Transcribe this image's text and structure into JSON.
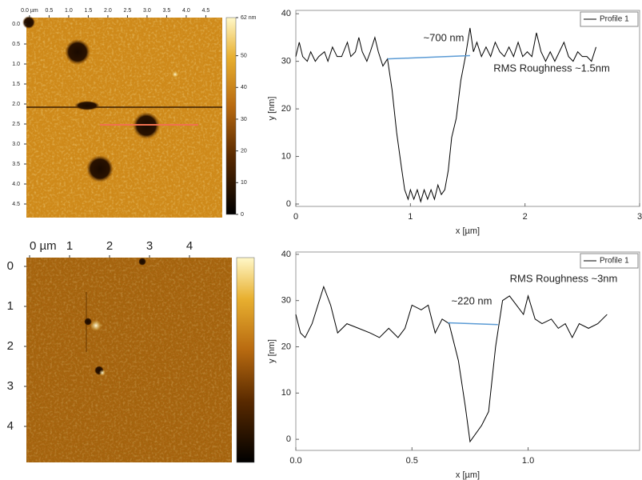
{
  "chart_data": [
    {
      "type": "image",
      "xlim": [
        -0.08,
        4.92
      ],
      "ylim": [
        -0.16,
        4.84
      ],
      "xticks": [
        {
          "value": 0,
          "label": "0.0 µm"
        },
        0.5,
        {
          "value": 1,
          "label": "1.0"
        },
        1.5,
        {
          "value": 2,
          "label": "2.0"
        },
        2.5,
        {
          "value": 3,
          "label": "3.0"
        },
        3.5,
        {
          "value": 4,
          "label": "4.0"
        },
        4.5
      ],
      "yticks": [
        {
          "value": 0,
          "label": "0.0"
        },
        0.5,
        {
          "value": 1,
          "label": "1.0"
        },
        1.5,
        {
          "value": 2,
          "label": "2.0"
        },
        2.5,
        {
          "value": 3,
          "label": "3.0"
        },
        3.5,
        {
          "value": 4,
          "label": "4.0"
        },
        4.5
      ],
      "colorbar": {
        "lim": [
          0,
          62
        ],
        "ticks": [
          0,
          10,
          20,
          30,
          40,
          50,
          {
            "value": 62,
            "label": "62 nm"
          }
        ]
      }
    },
    {
      "type": "line",
      "xlabel": "x [µm]",
      "ylabel": "y [nm]",
      "xlim": [
        0,
        3
      ],
      "ylim": [
        -0.5,
        40.7
      ],
      "xticks": [
        0,
        1,
        2,
        3
      ],
      "yticks": [
        0,
        10,
        20,
        30,
        40
      ],
      "legend": "upper right",
      "series": [
        {
          "name": "Profile 1",
          "color": "#000000",
          "x": [
            0,
            0.03,
            0.06,
            0.1,
            0.13,
            0.17,
            0.2,
            0.25,
            0.28,
            0.32,
            0.36,
            0.4,
            0.45,
            0.48,
            0.52,
            0.55,
            0.58,
            0.62,
            0.65,
            0.69,
            0.72,
            0.76,
            0.8,
            0.84,
            0.88,
            0.92,
            0.95,
            0.98,
            1.0,
            1.03,
            1.06,
            1.09,
            1.12,
            1.15,
            1.18,
            1.21,
            1.24,
            1.27,
            1.3,
            1.33,
            1.36,
            1.4,
            1.44,
            1.48,
            1.52,
            1.55,
            1.58,
            1.62,
            1.66,
            1.7,
            1.74,
            1.78,
            1.82,
            1.86,
            1.9,
            1.94,
            1.98,
            2.02,
            2.06,
            2.1,
            2.14,
            2.18,
            2.22,
            2.26,
            2.3,
            2.34,
            2.38,
            2.42,
            2.46,
            2.5,
            2.54,
            2.58,
            2.62
          ],
          "values": [
            31,
            34,
            31,
            30,
            32,
            30,
            31,
            32,
            30,
            33,
            31,
            31,
            34,
            31,
            32,
            35,
            32,
            30,
            32,
            35,
            32,
            29,
            30.5,
            24,
            15,
            8,
            3,
            1,
            3,
            1,
            3,
            0.5,
            3,
            1,
            3,
            1,
            4,
            2,
            3,
            7,
            14,
            18,
            26,
            31,
            37,
            32,
            34,
            31,
            33,
            31,
            34,
            32,
            31,
            33,
            31,
            34,
            31,
            32,
            31,
            36,
            32,
            30,
            32,
            30,
            32,
            34,
            31,
            30,
            32,
            31,
            31,
            30,
            33
          ]
        }
      ],
      "width_line": {
        "x": [
          0.8,
          1.52
        ],
        "y": [
          30.5,
          31.2
        ],
        "color": "#5b9bd5"
      },
      "annotations": [
        "~700 nm",
        "RMS Roughness ~1.5nm"
      ]
    },
    {
      "type": "image",
      "xlim": [
        -0.08,
        5.06
      ],
      "ylim": [
        -0.22,
        4.9
      ],
      "xticks": [
        {
          "value": 0,
          "label": "0 µm"
        },
        1,
        2,
        3,
        4
      ],
      "yticks": [
        0,
        1,
        2,
        3,
        4
      ]
    },
    {
      "type": "line",
      "xlabel": "x [µm]",
      "ylabel": "y [nm]",
      "xlim": [
        0,
        1.48
      ],
      "ylim": [
        -2.4,
        40.5
      ],
      "xticks": [
        {
          "value": 0,
          "label": "0.0"
        },
        0.5,
        {
          "value": 1,
          "label": "1.0"
        }
      ],
      "yticks": [
        0,
        10,
        20,
        30,
        40
      ],
      "legend": "upper right",
      "series": [
        {
          "name": "Profile 1",
          "color": "#000000",
          "x": [
            0,
            0.02,
            0.04,
            0.07,
            0.12,
            0.15,
            0.18,
            0.22,
            0.27,
            0.32,
            0.36,
            0.4,
            0.44,
            0.47,
            0.5,
            0.54,
            0.57,
            0.6,
            0.63,
            0.66,
            0.7,
            0.73,
            0.75,
            0.8,
            0.83,
            0.86,
            0.89,
            0.92,
            0.95,
            0.98,
            1.0,
            1.03,
            1.06,
            1.1,
            1.13,
            1.16,
            1.19,
            1.22,
            1.26,
            1.3,
            1.34
          ],
          "values": [
            27,
            23,
            22,
            25,
            33,
            29,
            23,
            25,
            24,
            23,
            22,
            24,
            22,
            24,
            29,
            28,
            29,
            23,
            26,
            25,
            17,
            7,
            -0.5,
            3,
            6,
            20,
            30,
            31,
            29,
            27,
            31,
            26,
            25,
            26,
            24,
            25,
            22,
            25,
            24,
            25,
            27
          ]
        }
      ],
      "width_line": {
        "x": [
          0.655,
          0.87
        ],
        "y": [
          25.2,
          24.8
        ],
        "color": "#5b9bd5"
      },
      "annotations": [
        "~220 nm",
        "RMS Roughness ~3nm"
      ]
    }
  ]
}
